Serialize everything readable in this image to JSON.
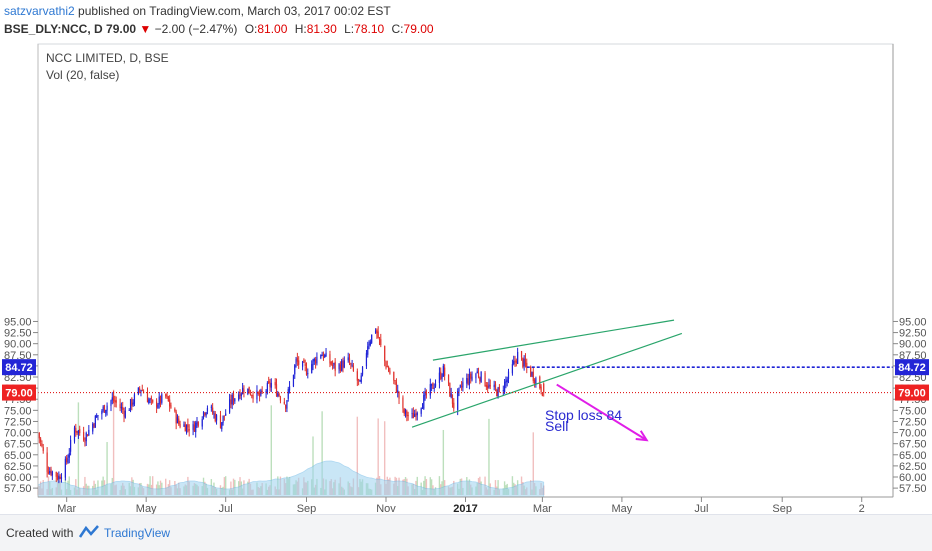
{
  "header": {
    "author": "satzvarvathi2",
    "published_text": "published on TradingView.com, March 03, 2017 00:02 EST",
    "symbol_line": "BSE_DLY:NCC, D 79.00",
    "change_arrow": "▼",
    "change_text": "−2.00 (−2.47%)",
    "o_label": "O:",
    "o_value": "81.00",
    "h_label": "H:",
    "h_value": "81.30",
    "l_label": "L:",
    "l_value": "78.10",
    "c_label": "C:",
    "c_value": "79.00"
  },
  "legend": {
    "title": "NCC LIMITED, D, BSE",
    "volume": "Vol (20, false)"
  },
  "footer": {
    "created_with": "Created with",
    "brand": "TradingView"
  },
  "colors": {
    "up": "#1e22d6",
    "down": "#e0312c",
    "trend": "#2aa56b",
    "arrow": "#e01ee8",
    "blue_level": "#1e22d6",
    "red_level": "#d00",
    "vol_area": "#9ed3f0",
    "vol_up": "#b5dcb5",
    "vol_down": "#f0b8b8"
  },
  "chart_data": {
    "type": "candlestick",
    "title": "NCC LIMITED, D, BSE",
    "x_ticks": [
      "Mar",
      "May",
      "Jul",
      "Sep",
      "Nov",
      "2017",
      "Mar",
      "May",
      "Jul",
      "Sep",
      "2"
    ],
    "y_ticks": [
      "95.00",
      "92.50",
      "90.00",
      "87.50",
      "85.00",
      "82.50",
      "80.00",
      "77.50",
      "75.00",
      "72.50",
      "70.00",
      "67.50",
      "65.00",
      "62.50",
      "60.00",
      "57.50"
    ],
    "ylim": [
      55.5,
      96.5
    ],
    "price_path": [
      {
        "date": "2016-02-08",
        "price": 70.0
      },
      {
        "date": "2016-02-15",
        "price": 62.0
      },
      {
        "date": "2016-02-24",
        "price": 60.0
      },
      {
        "date": "2016-03-01",
        "price": 63.5
      },
      {
        "date": "2016-03-07",
        "price": 71.0
      },
      {
        "date": "2016-03-15",
        "price": 69.0
      },
      {
        "date": "2016-03-25",
        "price": 74.0
      },
      {
        "date": "2016-04-05",
        "price": 77.5
      },
      {
        "date": "2016-04-15",
        "price": 74.5
      },
      {
        "date": "2016-04-27",
        "price": 80.0
      },
      {
        "date": "2016-05-06",
        "price": 76.0
      },
      {
        "date": "2016-05-16",
        "price": 78.0
      },
      {
        "date": "2016-05-26",
        "price": 72.0
      },
      {
        "date": "2016-06-06",
        "price": 71.0
      },
      {
        "date": "2016-06-17",
        "price": 76.0
      },
      {
        "date": "2016-06-27",
        "price": 72.0
      },
      {
        "date": "2016-07-06",
        "price": 77.5
      },
      {
        "date": "2016-07-15",
        "price": 80.0
      },
      {
        "date": "2016-07-27",
        "price": 78.0
      },
      {
        "date": "2016-08-05",
        "price": 81.0
      },
      {
        "date": "2016-08-16",
        "price": 76.5
      },
      {
        "date": "2016-08-24",
        "price": 86.0
      },
      {
        "date": "2016-09-01",
        "price": 84.0
      },
      {
        "date": "2016-09-12",
        "price": 88.0
      },
      {
        "date": "2016-09-23",
        "price": 84.5
      },
      {
        "date": "2016-10-03",
        "price": 86.0
      },
      {
        "date": "2016-10-12",
        "price": 80.5
      },
      {
        "date": "2016-10-18",
        "price": 90.0
      },
      {
        "date": "2016-10-24",
        "price": 93.5
      },
      {
        "date": "2016-10-31",
        "price": 86.0
      },
      {
        "date": "2016-11-09",
        "price": 80.0
      },
      {
        "date": "2016-11-14",
        "price": 74.5
      },
      {
        "date": "2016-11-21",
        "price": 73.5
      },
      {
        "date": "2016-11-29",
        "price": 77.0
      },
      {
        "date": "2016-12-07",
        "price": 80.5
      },
      {
        "date": "2016-12-15",
        "price": 84.0
      },
      {
        "date": "2016-12-23",
        "price": 76.0
      },
      {
        "date": "2016-12-30",
        "price": 81.0
      },
      {
        "date": "2017-01-10",
        "price": 83.5
      },
      {
        "date": "2017-01-20",
        "price": 80.0
      },
      {
        "date": "2017-01-27",
        "price": 79.0
      },
      {
        "date": "2017-02-03",
        "price": 82.5
      },
      {
        "date": "2017-02-10",
        "price": 87.5
      },
      {
        "date": "2017-02-17",
        "price": 84.5
      },
      {
        "date": "2017-02-24",
        "price": 82.0
      },
      {
        "date": "2017-03-02",
        "price": 79.0
      }
    ],
    "volume_note": "Vol (20, false)",
    "levels": [
      {
        "name": "84.72",
        "value": 84.72,
        "style": "blue-dotted"
      },
      {
        "name": "79.00",
        "value": 79.0,
        "style": "red-dotted"
      }
    ],
    "annotations": [
      {
        "text": "Stop loss 84",
        "date": "2017-03-03",
        "price": 72.8
      },
      {
        "text": "Sell",
        "date": "2017-03-03",
        "price": 70.3
      }
    ],
    "trend_lines": [
      {
        "from": {
          "date": "2016-12-07",
          "price": 86.3
        },
        "to": {
          "date": "2017-06-10",
          "price": 95.3
        }
      },
      {
        "from": {
          "date": "2016-11-21",
          "price": 71.2
        },
        "to": {
          "date": "2017-06-16",
          "price": 92.3
        }
      }
    ],
    "arrow": {
      "from": {
        "date": "2017-03-12",
        "price": 80.8
      },
      "to": {
        "date": "2017-05-20",
        "price": 68.3
      }
    }
  }
}
